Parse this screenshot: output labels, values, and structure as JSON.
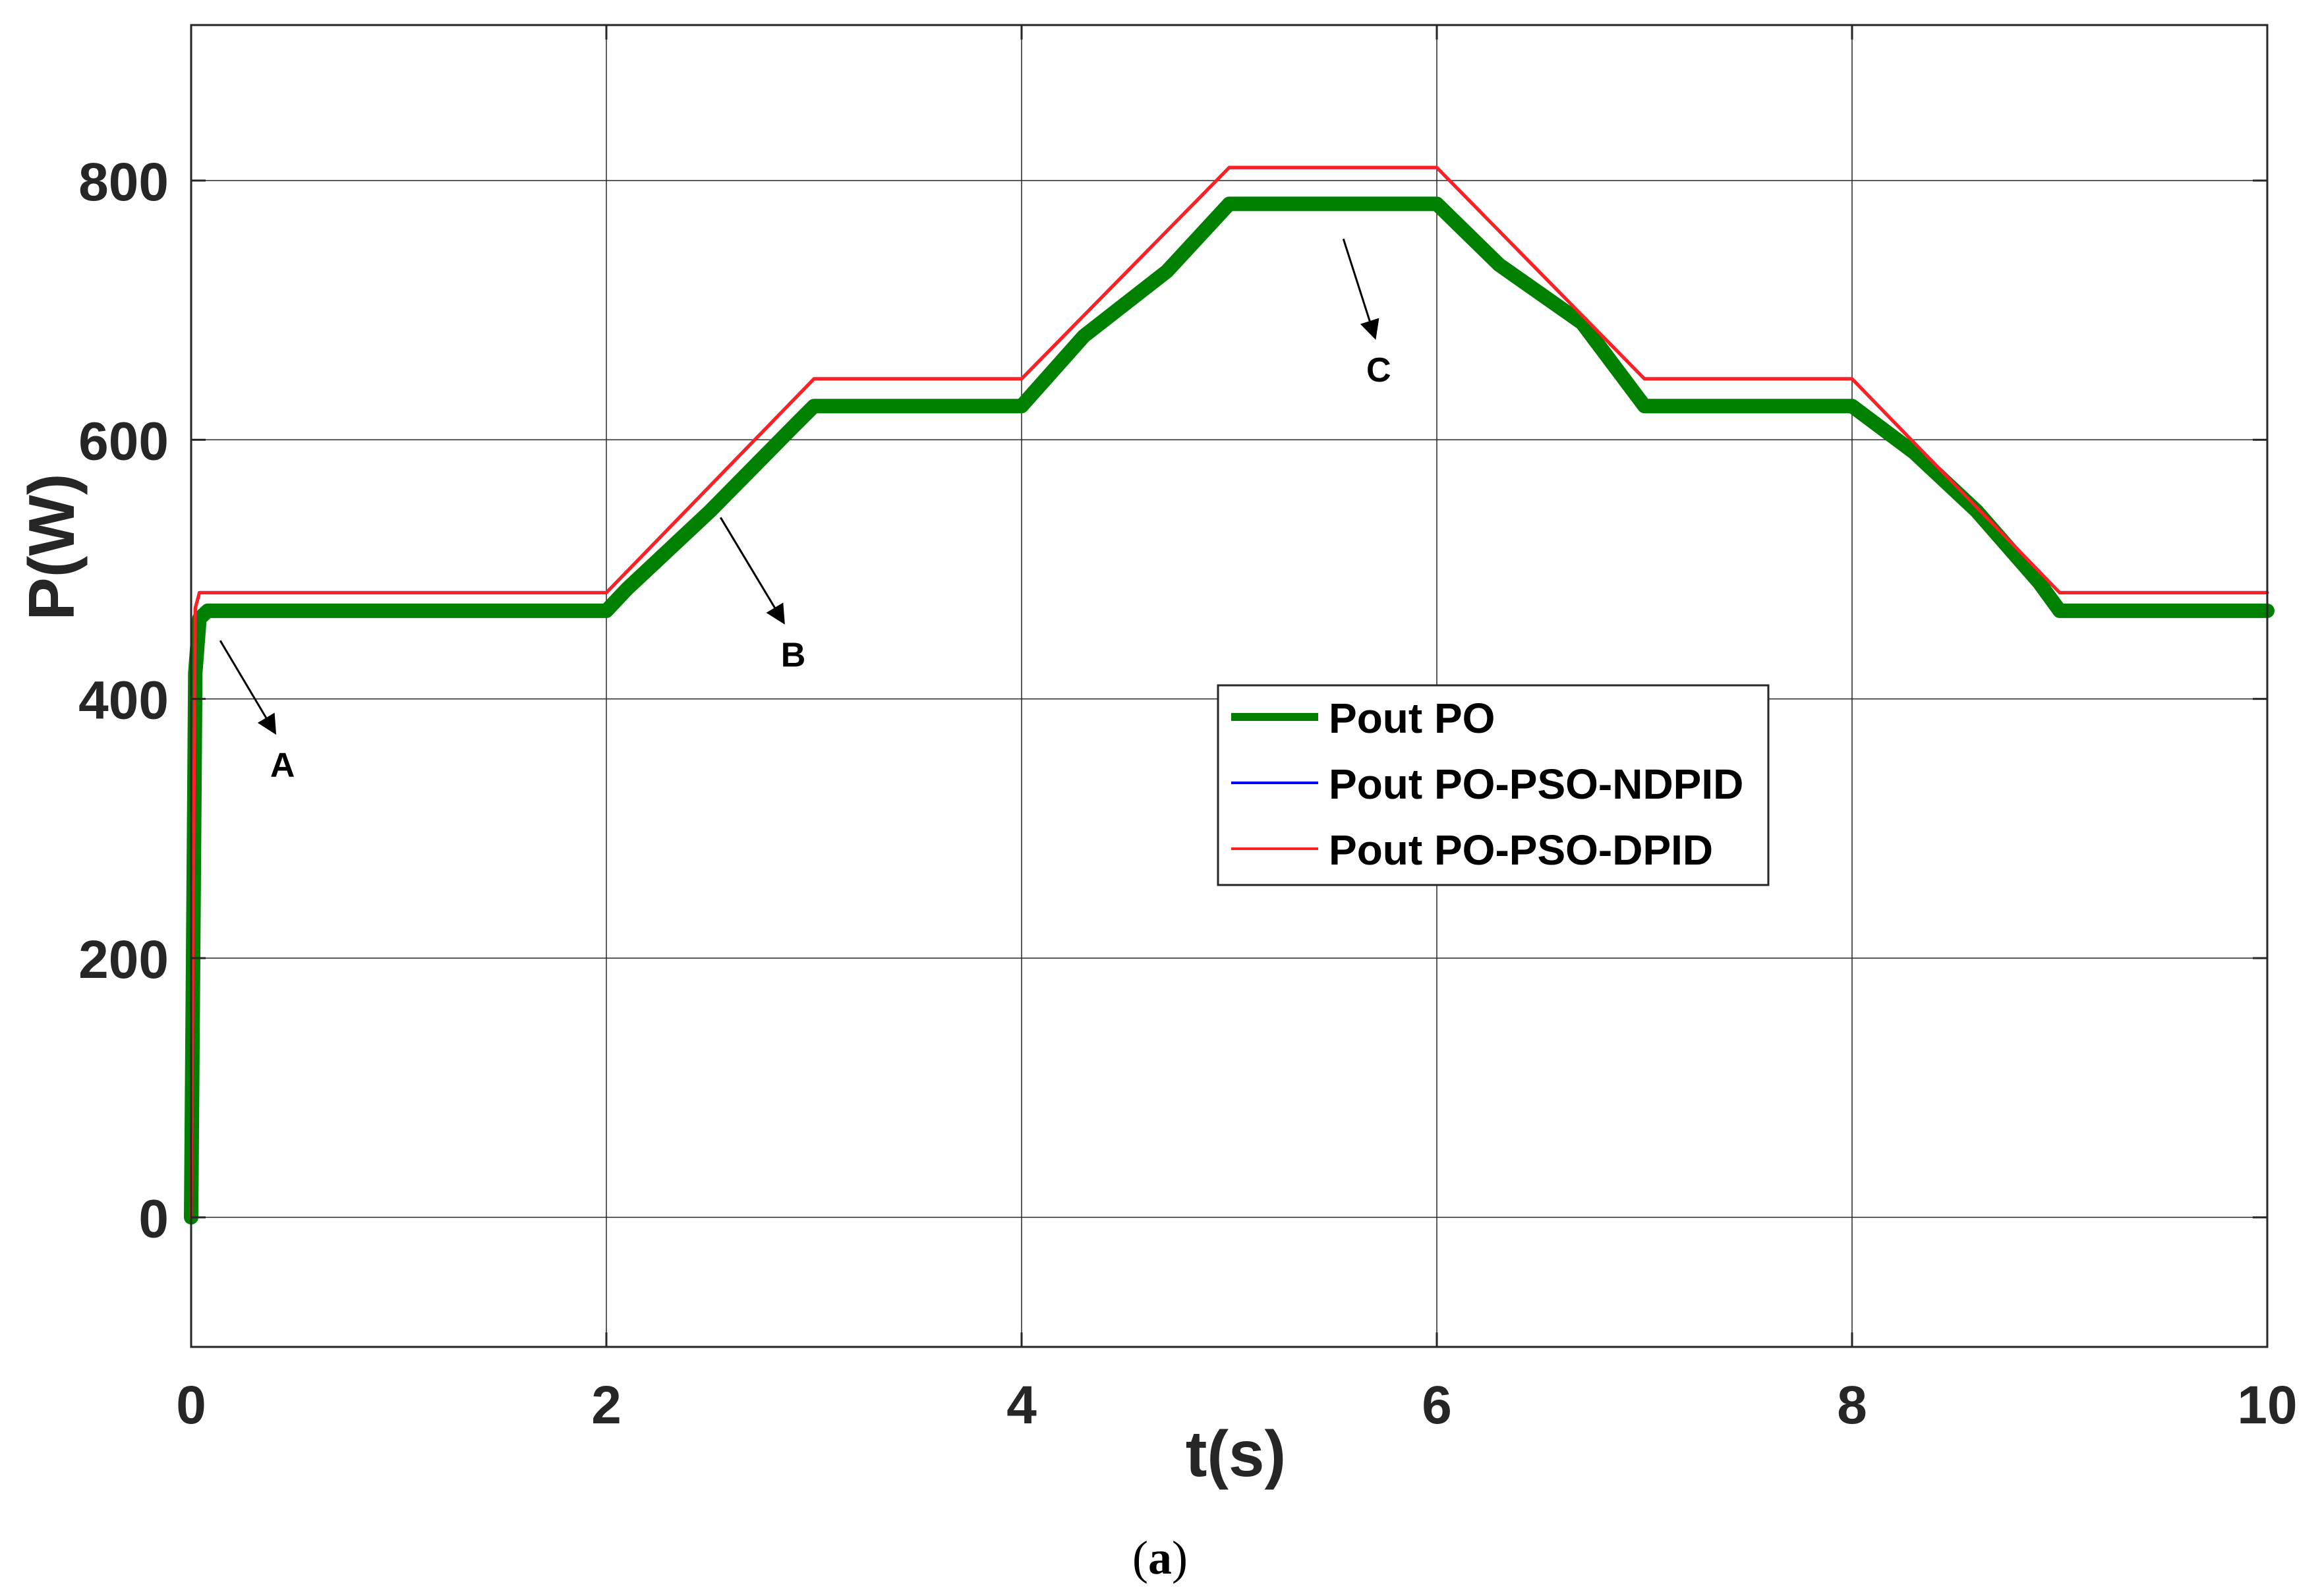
{
  "chart_data": {
    "type": "line",
    "xlabel": "t(s)",
    "ylabel": "P(W)",
    "xlim": [
      0,
      10
    ],
    "ylim": [
      -100,
      920
    ],
    "xticks": [
      0,
      2,
      4,
      6,
      8,
      10
    ],
    "yticks": [
      0,
      200,
      400,
      600,
      800
    ],
    "grid": true,
    "legend_position": "center-right",
    "series": [
      {
        "name": "Pout PO",
        "color": "#008000",
        "style": "thick",
        "x": [
          0,
          0.02,
          0.04,
          0.08,
          2.0,
          2.1,
          2.5,
          2.9,
          3.0,
          4.0,
          4.3,
          4.7,
          5.0,
          6.0,
          6.3,
          6.7,
          7.0,
          8.0,
          8.3,
          8.6,
          8.9,
          9.0,
          10.0
        ],
        "y": [
          0,
          420,
          462,
          468,
          468,
          485,
          545,
          610,
          626,
          626,
          680,
          730,
          782,
          782,
          735,
          690,
          626,
          626,
          590,
          545,
          490,
          468,
          468
        ]
      },
      {
        "name": "Pout PO-PSO-NDPID",
        "color": "#0000ff",
        "style": "thin",
        "x": [
          0,
          0.02,
          0.04,
          2.0,
          3.0,
          4.0,
          5.0,
          6.0,
          7.0,
          8.0,
          9.0,
          10.0
        ],
        "y": [
          0,
          470,
          482,
          482,
          647,
          647,
          810,
          810,
          647,
          647,
          482,
          482
        ]
      },
      {
        "name": "Pout PO-PSO-DPID",
        "color": "#ff2020",
        "style": "thin",
        "x": [
          0,
          0.02,
          0.04,
          2.0,
          3.0,
          4.0,
          5.0,
          6.0,
          7.0,
          8.0,
          9.0,
          10.0
        ],
        "y": [
          0,
          470,
          482,
          482,
          647,
          647,
          810,
          810,
          647,
          647,
          482,
          482
        ]
      }
    ],
    "annotations": [
      {
        "text": "A",
        "arrow_from": [
          0.14,
          445
        ],
        "arrow_to": [
          0.4,
          375
        ],
        "label_at": [
          0.44,
          340
        ]
      },
      {
        "text": "B",
        "arrow_from": [
          2.55,
          540
        ],
        "arrow_to": [
          2.85,
          460
        ],
        "label_at": [
          2.9,
          425
        ]
      },
      {
        "text": "C",
        "arrow_from": [
          5.55,
          755
        ],
        "arrow_to": [
          5.7,
          680
        ],
        "label_at": [
          5.72,
          645
        ]
      }
    ]
  },
  "caption": {
    "open": "(",
    "letter": "a",
    "close": ")"
  }
}
